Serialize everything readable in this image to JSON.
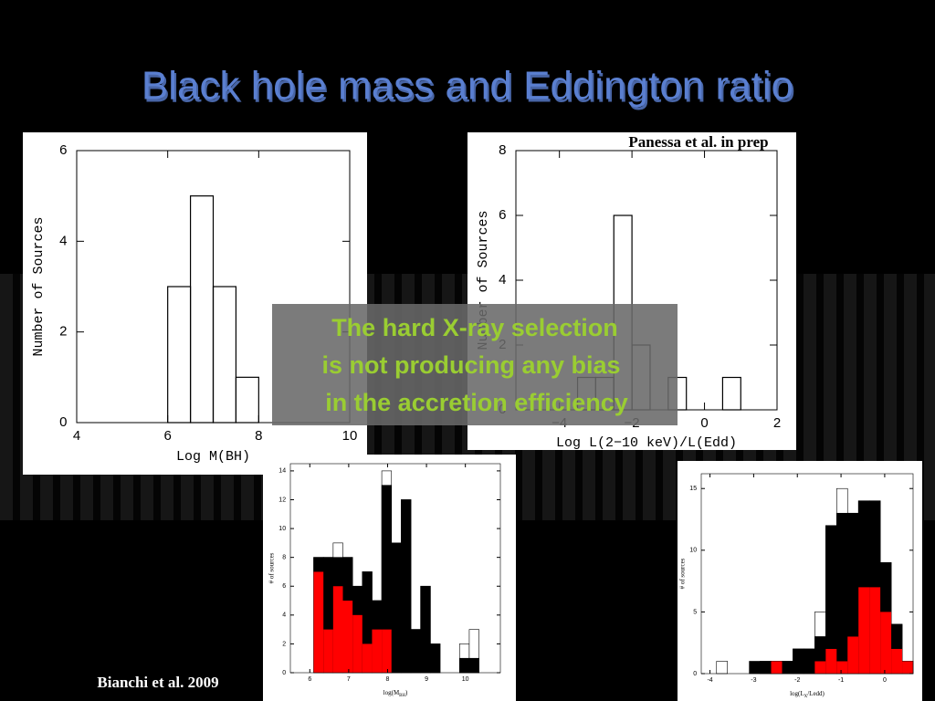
{
  "slide": {
    "title": "Black hole mass and Eddington ratio",
    "credit_top": "Panessa et al. in prep",
    "credit_bottom": "Bianchi et al. 2009",
    "note": [
      "The hard X-ray selection",
      "is not producing any bias",
      "in the accretion efficiency"
    ]
  },
  "chart_data": [
    {
      "type": "histogram",
      "x_label": "Log M(BH)",
      "y_label": "Number of Sources",
      "bins": [
        6,
        6.5,
        7,
        7.5,
        8
      ],
      "values": [
        3,
        5,
        3,
        1
      ],
      "color": "#000000",
      "xlim": [
        4,
        10
      ],
      "ylim": [
        0,
        6
      ],
      "xticks": [
        4,
        6,
        8,
        10
      ],
      "yticks": [
        0,
        2,
        4,
        6
      ]
    },
    {
      "type": "histogram",
      "x_label": "Log L(2−10 keV)/L(Edd)",
      "y_label": "Number of Sources",
      "bins": [
        -3.5,
        -3,
        -2.5,
        -2,
        -1.5,
        -1,
        -0.5,
        0,
        0.5,
        1
      ],
      "values": [
        1,
        1,
        6,
        2,
        0,
        1,
        0,
        0,
        1
      ],
      "color": "#000000",
      "xlim": [
        -5.2,
        2
      ],
      "ylim": [
        0,
        8
      ],
      "xticks": [
        {
          "value": -4,
          "label": "−4"
        },
        {
          "value": -2,
          "label": "−2"
        },
        0,
        2
      ],
      "yticks": [
        0,
        2,
        4,
        6,
        8
      ]
    },
    {
      "type": "histogram",
      "x_label": [
        "log(M",
        "BH",
        ")"
      ],
      "y_label": "# of sources",
      "bins": [
        6.1,
        6.35,
        6.6,
        6.85,
        7.1,
        7.35,
        7.6,
        7.85,
        8.1,
        8.35,
        8.6,
        8.85,
        9.1,
        9.35,
        9.6,
        9.85,
        10.1,
        10.35
      ],
      "series": [
        {
          "color": "#ffffff",
          "values": [
            8,
            8,
            9,
            8,
            6,
            7,
            5,
            14,
            9,
            12,
            3,
            6,
            2,
            0,
            0,
            2,
            3
          ]
        },
        {
          "color": "#000000",
          "values": [
            8,
            8,
            8,
            8,
            6,
            7,
            5,
            13,
            9,
            12,
            3,
            6,
            2,
            0,
            0,
            1,
            1
          ]
        },
        {
          "color": "#ff0000",
          "values": [
            7,
            3,
            6,
            5,
            4,
            2,
            3,
            3,
            0,
            0,
            0,
            0,
            0,
            0,
            0,
            0,
            0
          ]
        }
      ],
      "xlim": [
        5.5,
        10.9
      ],
      "ylim": [
        0,
        14.5
      ],
      "xticks": [
        6,
        7,
        8,
        9,
        10
      ],
      "yticks": [
        0,
        2,
        4,
        6,
        8,
        10,
        12,
        14
      ]
    },
    {
      "type": "histogram",
      "x_label": [
        "log(L",
        "X",
        "/Ledd)"
      ],
      "y_label": "# of sources",
      "bins": [
        -3.85,
        -3.6,
        -3.35,
        -3.1,
        -2.85,
        -2.6,
        -2.35,
        -2.1,
        -1.85,
        -1.6,
        -1.35,
        -1.1,
        -0.85,
        -0.6,
        -0.35,
        -0.1,
        0.15,
        0.4,
        0.65
      ],
      "series": [
        {
          "color": "#ffffff",
          "values": [
            1,
            0,
            0,
            0,
            1,
            1,
            1,
            2,
            2,
            5,
            12,
            15,
            13,
            14,
            14,
            9,
            4,
            1
          ]
        },
        {
          "color": "#000000",
          "values": [
            0,
            0,
            0,
            1,
            1,
            1,
            1,
            2,
            2,
            3,
            12,
            13,
            13,
            14,
            14,
            9,
            4,
            1
          ]
        },
        {
          "color": "#ff0000",
          "values": [
            0,
            0,
            0,
            0,
            0,
            1,
            0,
            0,
            0,
            1,
            2,
            1,
            3,
            7,
            7,
            5,
            2,
            1
          ]
        }
      ],
      "xlim": [
        -4.2,
        0.65
      ],
      "ylim": [
        0,
        16.2
      ],
      "xticks": [
        -4,
        -3,
        -2,
        -1,
        0
      ],
      "yticks": [
        0,
        5,
        10,
        15
      ]
    }
  ]
}
